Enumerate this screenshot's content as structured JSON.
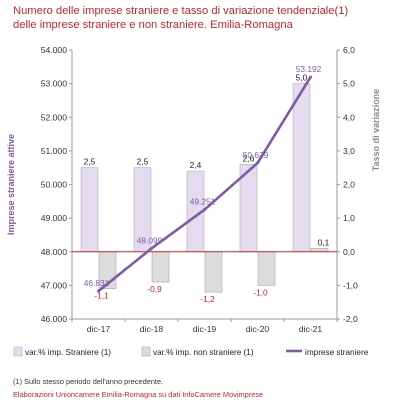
{
  "title_line1": "Numero delle imprese straniere e tasso di variazione tendenziale(1)",
  "title_line2": "delle imprese straniere e non straniere. Emilia-Romagna",
  "footnote": "(1) Sullo stesso periodo dell'anno precedente.",
  "source": "Elaborazioni Unioncamere Emilia-Romagna su dati InfoCamere Movimprese",
  "colors": {
    "title": "#c0272d",
    "bar_stranieri": "#e3dcee",
    "bar_non_stranieri": "#dcdcdc",
    "line": "#7d5ba6",
    "zero_line": "#c0272d",
    "y_right_label": "#8a8a8a"
  },
  "chart_data": {
    "type": "bar",
    "categories": [
      "dic-17",
      "dic-18",
      "dic-19",
      "dic-20",
      "dic-21"
    ],
    "series": [
      {
        "name": "var.% imp. Straniere (1)",
        "axis": "right",
        "type": "bar",
        "values": [
          2.5,
          2.5,
          2.4,
          2.6,
          5.0
        ],
        "labels": [
          "2,5",
          "2,5",
          "2,4",
          "2,6",
          "5,0"
        ]
      },
      {
        "name": "var.% imp. non straniere (1)",
        "axis": "right",
        "type": "bar",
        "values": [
          -1.1,
          -0.9,
          -1.2,
          -1.0,
          0.1
        ],
        "labels": [
          "-1,1",
          "-0,9",
          "-1,2",
          "-1,0",
          "0,1"
        ]
      },
      {
        "name": "imprese straniere",
        "axis": "left",
        "type": "line",
        "values": [
          46831,
          48099,
          49251,
          50639,
          53192
        ],
        "labels": [
          "46.831",
          "48.099",
          "49.251",
          "50.639",
          "53.192"
        ]
      }
    ],
    "ylabel_left": "Imprese straniere attive",
    "ylabel_right": "Tasso di variazione",
    "ylim_left": [
      46000,
      54000
    ],
    "ylim_right": [
      -2.0,
      6.0
    ],
    "yticks_left": [
      "46.000",
      "47.000",
      "48.000",
      "49.000",
      "50.000",
      "51.000",
      "52.000",
      "53.000",
      "54.000"
    ],
    "yticks_right": [
      "-2,0",
      "-1,0",
      "0,0",
      "1,0",
      "2,0",
      "3,0",
      "4,0",
      "5,0",
      "6,0"
    ],
    "grid": false,
    "legend": "bottom"
  }
}
